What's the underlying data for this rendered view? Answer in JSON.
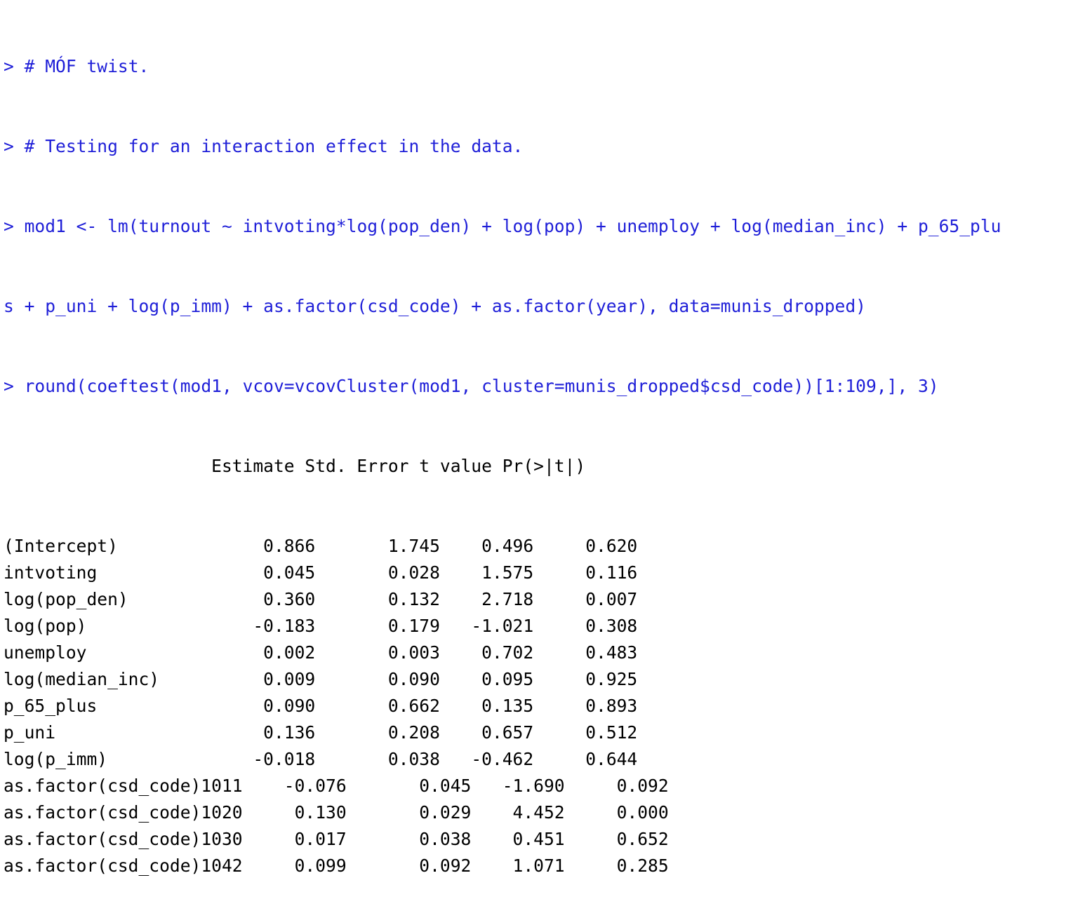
{
  "console": {
    "prompt": "> ",
    "commands": [
      "# MÓF twist.",
      "# Testing for an interaction effect in the data.",
      "mod1 <- lm(turnout ~ intvoting*log(pop_den) + log(pop) + unemploy + log(median_inc) + p_65_plu",
      "s + p_uni + log(p_imm) + as.factor(csd_code) + as.factor(year), data=munis_dropped)",
      "round(coeftest(mod1, vcov=vcovCluster(mod1, cluster=munis_dropped$csd_code))[1:109,], 3)"
    ],
    "command_has_prompt": [
      true,
      true,
      true,
      false,
      true
    ],
    "output": {
      "header": "                    Estimate Std. Error t value Pr(>|t|)",
      "rows": [
        {
          "term": "(Intercept)",
          "estimate": "0.866",
          "std_error": "1.745",
          "t_value": "0.496",
          "p_value": "0.620"
        },
        {
          "term": "intvoting",
          "estimate": "0.045",
          "std_error": "0.028",
          "t_value": "1.575",
          "p_value": "0.116"
        },
        {
          "term": "log(pop_den)",
          "estimate": "0.360",
          "std_error": "0.132",
          "t_value": "2.718",
          "p_value": "0.007"
        },
        {
          "term": "log(pop)",
          "estimate": "-0.183",
          "std_error": "0.179",
          "t_value": "-1.021",
          "p_value": "0.308"
        },
        {
          "term": "unemploy",
          "estimate": "0.002",
          "std_error": "0.003",
          "t_value": "0.702",
          "p_value": "0.483"
        },
        {
          "term": "log(median_inc)",
          "estimate": "0.009",
          "std_error": "0.090",
          "t_value": "0.095",
          "p_value": "0.925"
        },
        {
          "term": "p_65_plus",
          "estimate": "0.090",
          "std_error": "0.662",
          "t_value": "0.135",
          "p_value": "0.893"
        },
        {
          "term": "p_uni",
          "estimate": "0.136",
          "std_error": "0.208",
          "t_value": "0.657",
          "p_value": "0.512"
        },
        {
          "term": "log(p_imm)",
          "estimate": "-0.018",
          "std_error": "0.038",
          "t_value": "-0.462",
          "p_value": "0.644"
        },
        {
          "term": "as.factor(csd_code)1011",
          "estimate": "-0.076",
          "std_error": "0.045",
          "t_value": "-1.690",
          "p_value": "0.092"
        },
        {
          "term": "as.factor(csd_code)1020",
          "estimate": "0.130",
          "std_error": "0.029",
          "t_value": "4.452",
          "p_value": "0.000"
        },
        {
          "term": "as.factor(csd_code)1030",
          "estimate": "0.017",
          "std_error": "0.038",
          "t_value": "0.451",
          "p_value": "0.652"
        },
        {
          "term": "as.factor(csd_code)1042",
          "estimate": "0.099",
          "std_error": "0.092",
          "t_value": "1.071",
          "p_value": "0.285"
        }
      ]
    },
    "colors": {
      "command": "#1f1fd8",
      "output": "#000000",
      "background": "#ffffff"
    }
  }
}
